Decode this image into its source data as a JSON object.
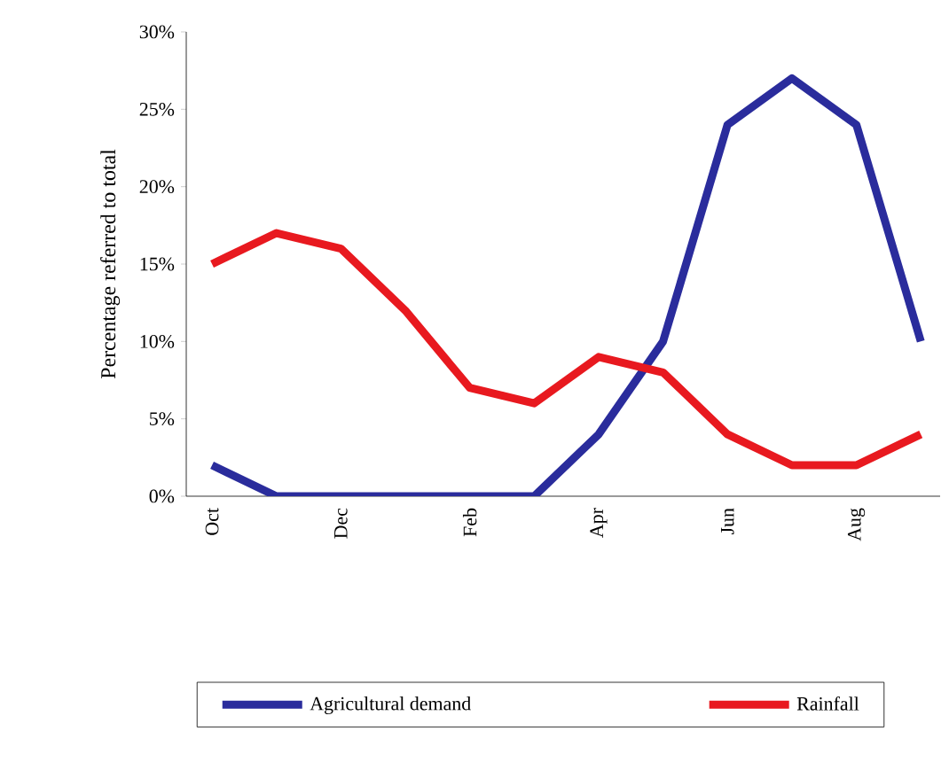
{
  "chart_data": {
    "type": "line",
    "ylabel": "Percentage referred to total",
    "categories": [
      "Oct",
      null,
      "Dec",
      null,
      "Feb",
      null,
      "Apr",
      null,
      "Jun",
      null,
      "Aug",
      null
    ],
    "series": [
      {
        "name": "Agricultural demand",
        "color": "#2a2c9c",
        "values": [
          2,
          0,
          0,
          0,
          0,
          0,
          4,
          10,
          24,
          27,
          24,
          10
        ]
      },
      {
        "name": "Rainfall",
        "color": "#e8191f",
        "values": [
          15,
          17,
          16,
          12,
          7,
          6,
          9,
          8,
          4,
          2,
          2,
          4
        ]
      }
    ],
    "ylim": [
      0,
      30
    ],
    "yticks": [
      {
        "value": 0,
        "label": "0%"
      },
      {
        "value": 5,
        "label": "5%"
      },
      {
        "value": 10,
        "label": "10%"
      },
      {
        "value": 15,
        "label": "15%"
      },
      {
        "value": 20,
        "label": "20%"
      },
      {
        "value": 25,
        "label": "25%"
      },
      {
        "value": 30,
        "label": "30%"
      }
    ],
    "legend": "bottom",
    "grid": false,
    "marker": "none",
    "line_style": "solid"
  }
}
